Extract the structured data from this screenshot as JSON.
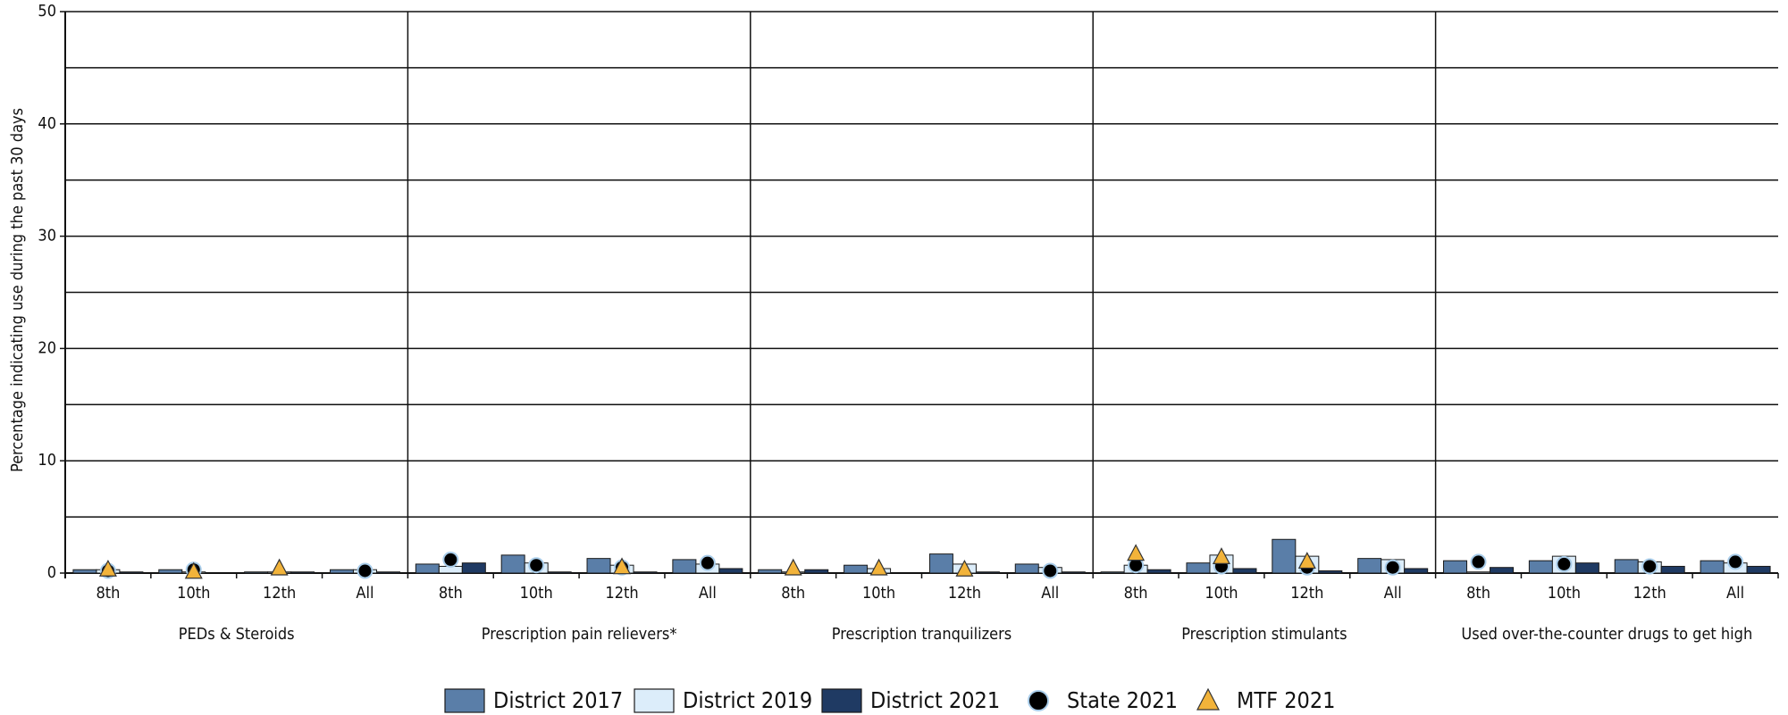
{
  "chart_data": {
    "type": "bar",
    "ylabel": "Percentage indicating use during the past 30 days",
    "groups": [
      "PEDs & Steroids",
      "Prescription pain relievers*",
      "Prescription tranquilizers",
      "Prescription stimulants",
      "Used over-the-counter drugs to get high"
    ],
    "categories": [
      "8th",
      "10th",
      "12th",
      "All",
      "8th",
      "10th",
      "12th",
      "All",
      "8th",
      "10th",
      "12th",
      "All",
      "8th",
      "10th",
      "12th",
      "All",
      "8th",
      "10th",
      "12th",
      "All"
    ],
    "series": [
      {
        "name": "District 2017",
        "color": "#5a7ea8",
        "marker": "bar",
        "values": [
          0.3,
          0.3,
          0.1,
          0.3,
          0.8,
          1.6,
          1.3,
          1.2,
          0.3,
          0.7,
          1.7,
          0.8,
          0.1,
          0.9,
          3.0,
          1.3,
          1.1,
          1.1,
          1.2,
          1.1
        ]
      },
      {
        "name": "District 2019",
        "color": "#dcedfa",
        "marker": "bar",
        "values": [
          0.3,
          0.1,
          0.1,
          0.3,
          0.6,
          0.9,
          0.7,
          0.8,
          0.1,
          0.4,
          0.8,
          0.5,
          0.7,
          1.6,
          1.5,
          1.2,
          0.1,
          1.5,
          1.0,
          0.9
        ]
      },
      {
        "name": "District 2021",
        "color": "#1f3a63",
        "marker": "bar",
        "values": [
          0.1,
          0.0,
          0.1,
          0.1,
          0.9,
          0.1,
          0.1,
          0.4,
          0.3,
          0.0,
          0.1,
          0.1,
          0.3,
          0.4,
          0.2,
          0.4,
          0.5,
          0.9,
          0.6,
          0.6
        ]
      },
      {
        "name": "State 2021",
        "color": "#000000",
        "marker": "circle",
        "values": [
          0.2,
          0.3,
          null,
          0.2,
          1.2,
          0.7,
          0.5,
          0.9,
          null,
          null,
          null,
          0.2,
          0.7,
          0.6,
          0.5,
          0.5,
          1.0,
          0.8,
          0.6,
          1.0
        ]
      },
      {
        "name": "MTF 2021",
        "color": "#f2b33a",
        "marker": "triangle",
        "values": [
          0.3,
          0.1,
          0.4,
          null,
          null,
          null,
          0.5,
          null,
          0.4,
          0.4,
          0.3,
          null,
          1.7,
          1.4,
          1.0,
          null,
          null,
          null,
          null,
          null
        ]
      }
    ],
    "ylim": [
      0,
      50
    ],
    "yticks": [
      0,
      10,
      20,
      30,
      40,
      50
    ],
    "minor_grid": [
      5,
      15,
      25,
      35,
      45
    ],
    "grid": true,
    "legend": "bottom"
  }
}
